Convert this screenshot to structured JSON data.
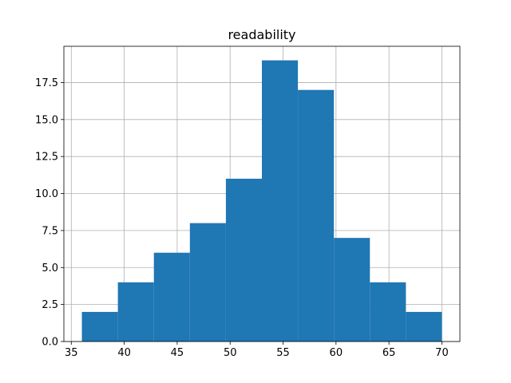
{
  "chart_data": {
    "type": "bar",
    "title": "readability",
    "xlabel": "",
    "ylabel": "",
    "bar_color": "#1f77b4",
    "grid": true,
    "xlim": [
      34.3,
      71.7
    ],
    "ylim": [
      0,
      19.95
    ],
    "bins": [
      {
        "start": 36.0,
        "end": 39.4,
        "count": 2
      },
      {
        "start": 39.4,
        "end": 42.8,
        "count": 4
      },
      {
        "start": 42.8,
        "end": 46.2,
        "count": 6
      },
      {
        "start": 46.2,
        "end": 49.6,
        "count": 8
      },
      {
        "start": 49.6,
        "end": 53.0,
        "count": 11
      },
      {
        "start": 53.0,
        "end": 56.4,
        "count": 19
      },
      {
        "start": 56.4,
        "end": 59.8,
        "count": 17
      },
      {
        "start": 59.8,
        "end": 63.2,
        "count": 7
      },
      {
        "start": 63.2,
        "end": 66.6,
        "count": 4
      },
      {
        "start": 66.6,
        "end": 70.0,
        "count": 2
      }
    ],
    "xticks": [
      35,
      40,
      45,
      50,
      55,
      60,
      65,
      70
    ],
    "xtick_labels": [
      "35",
      "40",
      "45",
      "50",
      "55",
      "60",
      "65",
      "70"
    ],
    "yticks": [
      0,
      2.5,
      5,
      7.5,
      10,
      12.5,
      15,
      17.5
    ],
    "ytick_labels": [
      "0.0",
      "2.5",
      "5.0",
      "7.5",
      "10.0",
      "12.5",
      "15.0",
      "17.5"
    ]
  }
}
